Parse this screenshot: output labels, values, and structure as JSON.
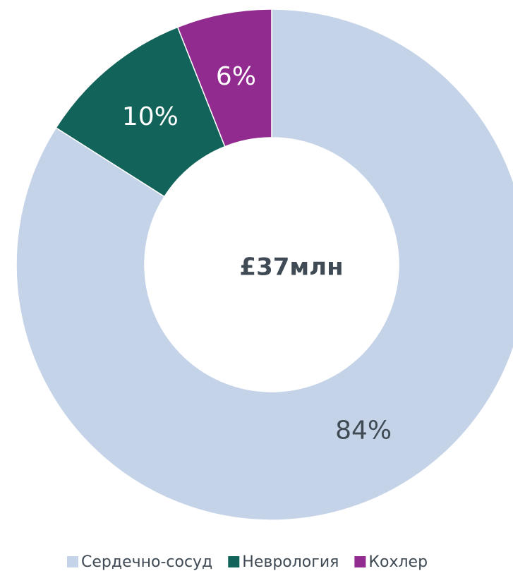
{
  "chart_data": {
    "type": "donut",
    "center_label": "£37млн",
    "categories": [
      "Сердечно-сосуд",
      "Неврология",
      "Кохлер"
    ],
    "values": [
      84,
      10,
      6
    ],
    "value_labels": [
      "84%",
      "10%",
      "6%"
    ],
    "colors": [
      "#c5d3e8",
      "#12635a",
      "#922b8f"
    ],
    "legend": "bottom"
  }
}
